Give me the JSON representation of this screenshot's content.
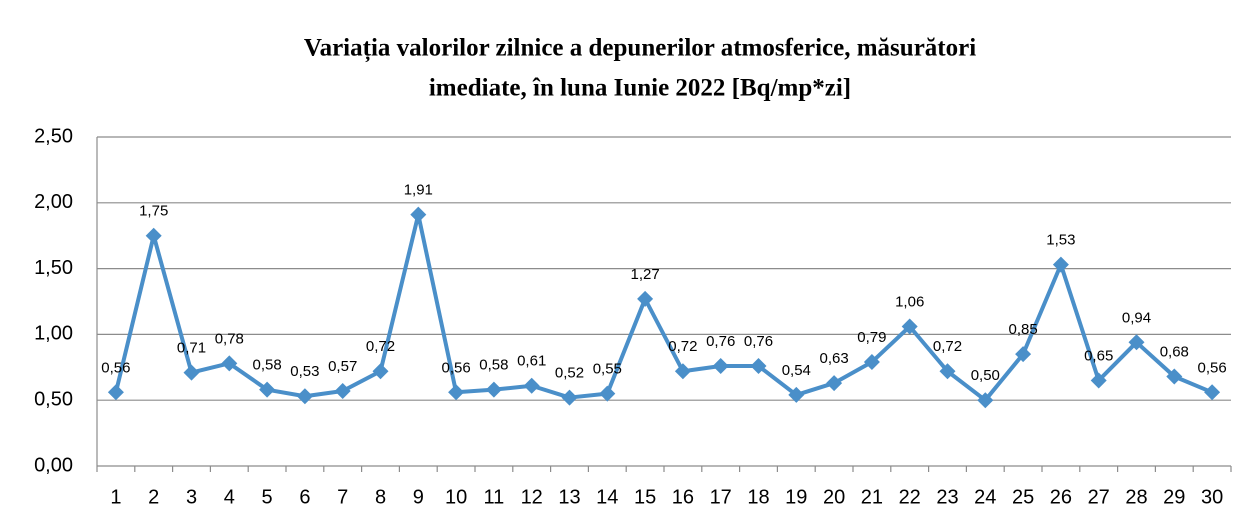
{
  "chart_data": {
    "type": "line",
    "title": [
      "Variația valorilor zilnice a depunerilor atmosferice, măsurători",
      "imediate,  în luna Iunie 2022 [Bq/mp*zi]"
    ],
    "categories": [
      "1",
      "2",
      "3",
      "4",
      "5",
      "6",
      "7",
      "8",
      "9",
      "10",
      "11",
      "12",
      "13",
      "14",
      "15",
      "16",
      "17",
      "18",
      "19",
      "20",
      "21",
      "22",
      "23",
      "24",
      "25",
      "26",
      "27",
      "28",
      "29",
      "30"
    ],
    "series": [
      {
        "color": "#4a8fc9",
        "values": [
          0.56,
          1.75,
          0.71,
          0.78,
          0.58,
          0.53,
          0.57,
          0.72,
          1.91,
          0.56,
          0.58,
          0.61,
          0.52,
          0.55,
          1.27,
          0.72,
          0.76,
          0.76,
          0.54,
          0.63,
          0.79,
          1.06,
          0.72,
          0.5,
          0.85,
          1.53,
          0.65,
          0.94,
          0.68,
          0.56
        ],
        "value_labels": [
          "0,56",
          "1,75",
          "0,71",
          "0,78",
          "0,58",
          "0,53",
          "0,57",
          "0,72",
          "1,91",
          "0,56",
          "0,58",
          "0,61",
          "0,52",
          "0,55",
          "1,27",
          "0,72",
          "0,76",
          "0,76",
          "0,54",
          "0,63",
          "0,79",
          "1,06",
          "0,72",
          "0,50",
          "0,85",
          "1,53",
          "0,65",
          "0,94",
          "0,68",
          "0,56"
        ]
      }
    ],
    "ylim": [
      0,
      2.5
    ],
    "yticks": [
      {
        "value": 0,
        "label": "0,00"
      },
      {
        "value": 0.5,
        "label": "0,50"
      },
      {
        "value": 1,
        "label": "1,00"
      },
      {
        "value": 1.5,
        "label": "1,50"
      },
      {
        "value": 2,
        "label": "2,00"
      },
      {
        "value": 2.5,
        "label": "2,50"
      }
    ],
    "grid": true
  }
}
